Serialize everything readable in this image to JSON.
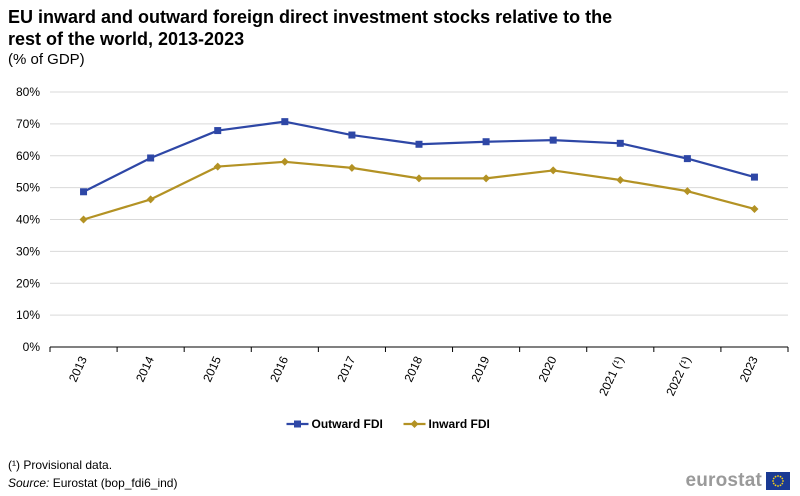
{
  "title": "EU inward and outward foreign direct investment stocks relative to the rest of the world, 2013-2023",
  "subtitle": "(% of GDP)",
  "footnote": "(¹) Provisional data.",
  "source": {
    "label": "Source:",
    "text": "Eurostat (bop_fdi6_ind)"
  },
  "logo": {
    "text": "eurostat"
  },
  "chart_data": {
    "type": "line",
    "categories": [
      "2013",
      "2014",
      "2015",
      "2016",
      "2017",
      "2018",
      "2019",
      "2020",
      "2021 (¹)",
      "2022 (¹)",
      "2023"
    ],
    "series": [
      {
        "name": "Outward FDI",
        "color": "#2e47a6",
        "marker": "square",
        "values": [
          48.7,
          59.3,
          67.9,
          70.7,
          66.5,
          63.6,
          64.4,
          64.9,
          63.9,
          59.1,
          53.3
        ]
      },
      {
        "name": "Inward FDI",
        "color": "#b39224",
        "marker": "diamond",
        "values": [
          40.0,
          46.3,
          56.6,
          58.1,
          56.2,
          52.9,
          52.9,
          55.4,
          52.4,
          48.9,
          43.3
        ]
      }
    ],
    "yticks": [
      "0%",
      "10%",
      "20%",
      "30%",
      "40%",
      "50%",
      "60%",
      "70%",
      "80%"
    ],
    "ylim": [
      0,
      80
    ],
    "grid": true,
    "legend_position": "bottom"
  }
}
